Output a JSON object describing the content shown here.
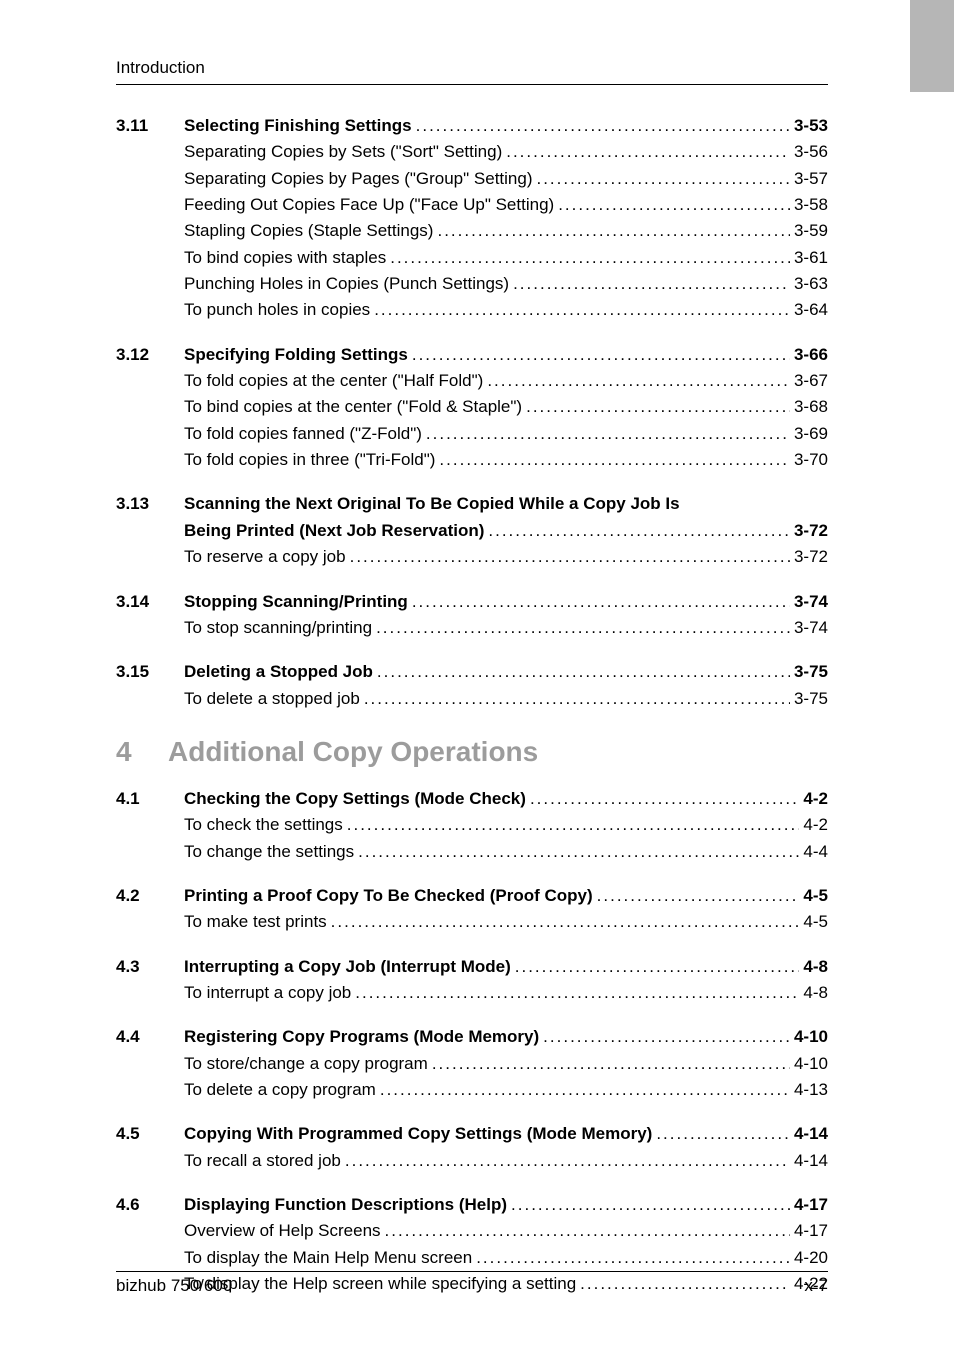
{
  "running_head": "Introduction",
  "footer": {
    "left": "bizhub 750/600",
    "right": "x-7"
  },
  "chapter": {
    "number": "4",
    "title": "Additional Copy Operations"
  },
  "pre_sections": [
    {
      "num": "3.11",
      "title": "Selecting Finishing Settings",
      "page": "3-53",
      "items": [
        {
          "t": "Separating Copies by Sets (\"Sort\" Setting)",
          "p": "3-56"
        },
        {
          "t": "Separating Copies by Pages (\"Group\" Setting)",
          "p": "3-57"
        },
        {
          "t": "Feeding Out Copies Face Up (\"Face Up\" Setting)",
          "p": "3-58"
        },
        {
          "t": "Stapling Copies (Staple Settings)",
          "p": "3-59"
        },
        {
          "t": "To bind copies with staples",
          "p": "3-61"
        },
        {
          "t": "Punching Holes in Copies (Punch Settings)",
          "p": "3-63"
        },
        {
          "t": "To punch holes in copies",
          "p": "3-64"
        }
      ]
    },
    {
      "num": "3.12",
      "title": "Specifying Folding Settings",
      "page": "3-66",
      "items": [
        {
          "t": "To fold copies at the center (\"Half Fold\")",
          "p": "3-67"
        },
        {
          "t": "To bind copies at the center (\"Fold & Staple\")",
          "p": "3-68"
        },
        {
          "t": "To fold copies fanned (\"Z-Fold\")",
          "p": "3-69"
        },
        {
          "t": "To fold copies in three (\"Tri-Fold\")",
          "p": "3-70"
        }
      ]
    },
    {
      "num": "3.13",
      "title": "Scanning the Next Original To Be Copied While a Copy Job Is",
      "title2": "Being Printed (Next Job Reservation)",
      "page": "3-72",
      "items": [
        {
          "t": "To reserve a copy job",
          "p": "3-72"
        }
      ]
    },
    {
      "num": "3.14",
      "title": "Stopping Scanning/Printing",
      "page": "3-74",
      "items": [
        {
          "t": "To stop scanning/printing",
          "p": "3-74"
        }
      ]
    },
    {
      "num": "3.15",
      "title": "Deleting a Stopped Job",
      "page": "3-75",
      "items": [
        {
          "t": "To delete a stopped job",
          "p": "3-75"
        }
      ]
    }
  ],
  "post_sections": [
    {
      "num": "4.1",
      "title": "Checking the Copy Settings (Mode Check)",
      "page": "4-2",
      "items": [
        {
          "t": "To check the settings",
          "p": "4-2"
        },
        {
          "t": "To change the settings",
          "p": "4-4"
        }
      ]
    },
    {
      "num": "4.2",
      "title": "Printing a Proof Copy To Be Checked (Proof Copy)",
      "page": "4-5",
      "items": [
        {
          "t": "To make test prints",
          "p": "4-5"
        }
      ]
    },
    {
      "num": "4.3",
      "title": "Interrupting a Copy Job (Interrupt Mode)",
      "page": "4-8",
      "items": [
        {
          "t": "To interrupt a copy job",
          "p": "4-8"
        }
      ]
    },
    {
      "num": "4.4",
      "title": "Registering Copy Programs (Mode Memory)",
      "page": "4-10",
      "items": [
        {
          "t": "To store/change a copy program",
          "p": "4-10"
        },
        {
          "t": "To delete a copy program",
          "p": "4-13"
        }
      ]
    },
    {
      "num": "4.5",
      "title": "Copying With Programmed Copy Settings (Mode Memory)",
      "page": "4-14",
      "items": [
        {
          "t": "To recall a stored job",
          "p": "4-14"
        }
      ]
    },
    {
      "num": "4.6",
      "title": "Displaying Function Descriptions (Help)",
      "page": "4-17",
      "items": [
        {
          "t": "Overview of Help Screens",
          "p": "4-17"
        },
        {
          "t": "To display the Main Help Menu screen",
          "p": "4-20"
        },
        {
          "t": "To display the Help screen while specifying a setting",
          "p": "4-22"
        }
      ]
    }
  ]
}
